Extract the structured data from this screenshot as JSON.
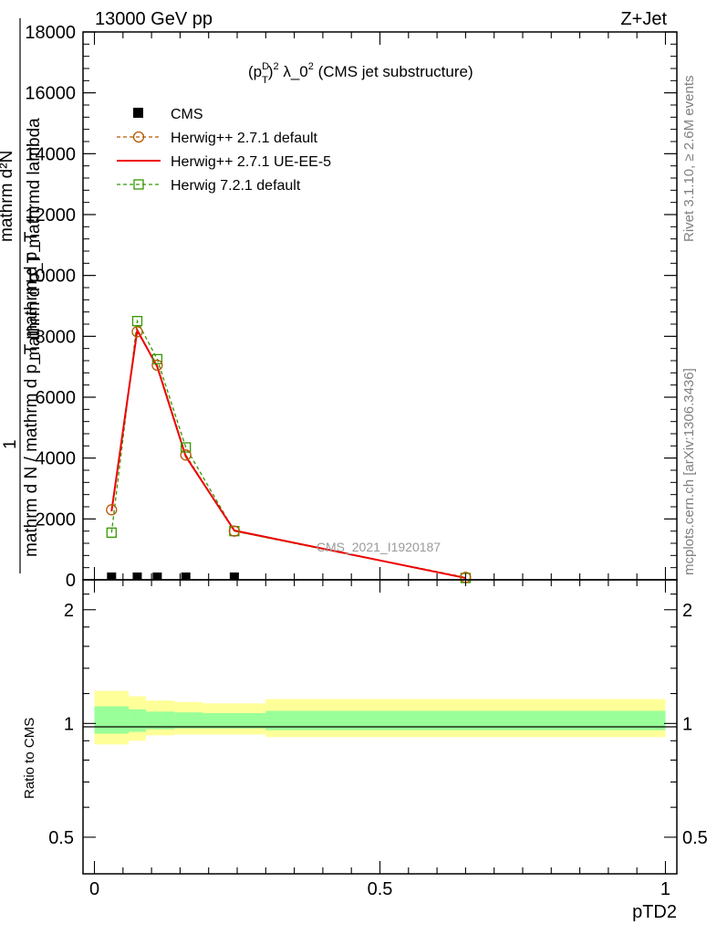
{
  "header": {
    "left": "13000 GeV pp",
    "right": "Z+Jet"
  },
  "plot_title": {
    "p": "(p",
    "sup": "D",
    "sub": "T",
    "rest": ")",
    "pow": "2",
    "lam": " λ_0",
    "pow2": "2",
    "tail": " (CMS jet substructure)"
  },
  "side_labels": {
    "rivet": "Rivet 3.1.10, ≥ 2.6M events",
    "mcplots": "mcplots.cern.ch [arXiv:1306.3436]"
  },
  "watermark": "CMS_2021_I1920187",
  "y_axis_label": {
    "one": "1",
    "inner_num": "mathrm d²N",
    "inner_den": "mathrm d p_T mathrmd lambda",
    "denominator": "mathrm d N / mathrm d p_T mathrm d p_T"
  },
  "ratio_ylabel": "Ratio to CMS",
  "x_axis_label": "pTD2",
  "legend": [
    {
      "label": "CMS",
      "color": "#000000",
      "marker": "square-filled",
      "line": "none"
    },
    {
      "label": "Herwig++ 2.7.1 default",
      "color": "#b35900",
      "marker": "circle-open",
      "line": "dashed"
    },
    {
      "label": "Herwig++ 2.7.1 UE-EE-5",
      "color": "#ee0000",
      "marker": "none",
      "line": "solid"
    },
    {
      "label": "Herwig 7.2.1 default",
      "color": "#339900",
      "marker": "square-open",
      "line": "dashed"
    }
  ],
  "chart_data": {
    "type": "line",
    "xlim": [
      -0.02,
      1.02
    ],
    "main": {
      "ylim": [
        0,
        18000
      ],
      "yticks": [
        0,
        2000,
        4000,
        6000,
        8000,
        10000,
        12000,
        14000,
        16000,
        18000
      ],
      "ytick_labels": [
        "0",
        "2000",
        "4000",
        "6000",
        "8000",
        "10000",
        "12000",
        "14000",
        "16000",
        "18000"
      ]
    },
    "ratio": {
      "ylim": [
        0.4,
        2.4
      ],
      "yticks": [
        0.5,
        1,
        2
      ],
      "ytick_labels": [
        "0.5",
        "1",
        "2"
      ]
    },
    "xticks": [
      0,
      0.5,
      1
    ],
    "xtick_labels": [
      "0",
      "0.5",
      "1"
    ],
    "series": [
      {
        "name": "CMS",
        "x": [
          0.03,
          0.075,
          0.11,
          0.16,
          0.245,
          0.65
        ],
        "y": [
          20,
          20,
          20,
          20,
          20,
          0
        ]
      },
      {
        "name": "Herwig++ 2.7.1 default",
        "x": [
          0.03,
          0.075,
          0.11,
          0.16,
          0.245,
          0.65
        ],
        "y": [
          2300,
          8150,
          7050,
          4100,
          1600,
          80
        ]
      },
      {
        "name": "Herwig++ 2.7.1 UE-EE-5",
        "x": [
          0.03,
          0.075,
          0.11,
          0.16,
          0.245,
          0.65
        ],
        "y": [
          2250,
          8200,
          7000,
          4050,
          1620,
          60
        ]
      },
      {
        "name": "Herwig 7.2.1 default",
        "x": [
          0.03,
          0.075,
          0.11,
          0.16,
          0.245,
          0.65
        ],
        "y": [
          1550,
          8500,
          7250,
          4350,
          1600,
          60
        ]
      }
    ],
    "ratio_bands": {
      "bins": [
        0,
        0.06,
        0.09,
        0.14,
        0.19,
        0.3,
        1.0
      ],
      "yellow_lo": [
        0.88,
        0.9,
        0.93,
        0.935,
        0.935,
        0.92
      ],
      "yellow_hi": [
        1.22,
        1.18,
        1.15,
        1.14,
        1.13,
        1.16
      ],
      "green_lo": [
        0.94,
        0.95,
        0.965,
        0.97,
        0.97,
        0.96
      ],
      "green_hi": [
        1.11,
        1.09,
        1.075,
        1.07,
        1.065,
        1.08
      ]
    }
  }
}
